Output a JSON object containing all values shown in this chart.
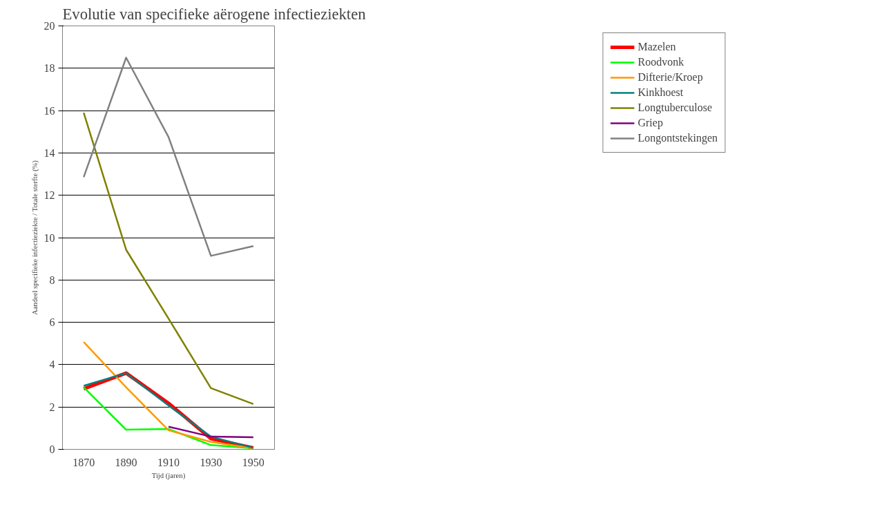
{
  "chart_data": {
    "type": "line",
    "title": "Evolutie van specifieke aërogene infectieziekten",
    "xlabel": "Tijd (jaren)",
    "ylabel": "Aandeel specifieke infectieziekte / Totale sterfte (%)",
    "categories": [
      "1870",
      "1890",
      "1910",
      "1930",
      "1950"
    ],
    "series": [
      {
        "name": "Mazelen",
        "color": "#ff0000",
        "values": [
          2.86,
          3.6,
          2.18,
          0.5,
          0.07
        ]
      },
      {
        "name": "Roodvonk",
        "color": "#00ff00",
        "values": [
          2.93,
          0.93,
          0.96,
          0.2,
          0.05
        ]
      },
      {
        "name": "Difterie/Kroep",
        "color": "#ff9900",
        "values": [
          5.07,
          2.93,
          0.9,
          0.35,
          0.05
        ]
      },
      {
        "name": "Kinkhoest",
        "color": "#008080",
        "values": [
          3.0,
          3.6,
          2.07,
          0.6,
          0.07
        ]
      },
      {
        "name": "Longtuberculose",
        "color": "#808000",
        "values": [
          15.9,
          9.43,
          6.18,
          2.89,
          2.14
        ]
      },
      {
        "name": "Griep",
        "color": "#800080",
        "values": [
          null,
          null,
          1.07,
          0.6,
          0.57
        ]
      },
      {
        "name": "Longontstekingen",
        "color": "#808080",
        "values": [
          12.86,
          18.5,
          14.75,
          9.14,
          9.6
        ]
      }
    ],
    "ylim": [
      0,
      20
    ],
    "yticks": [
      0,
      2,
      4,
      6,
      8,
      10,
      12,
      14,
      16,
      18,
      20
    ],
    "grid": "y",
    "legend": "right",
    "marker": "none",
    "line_style": "solid"
  }
}
